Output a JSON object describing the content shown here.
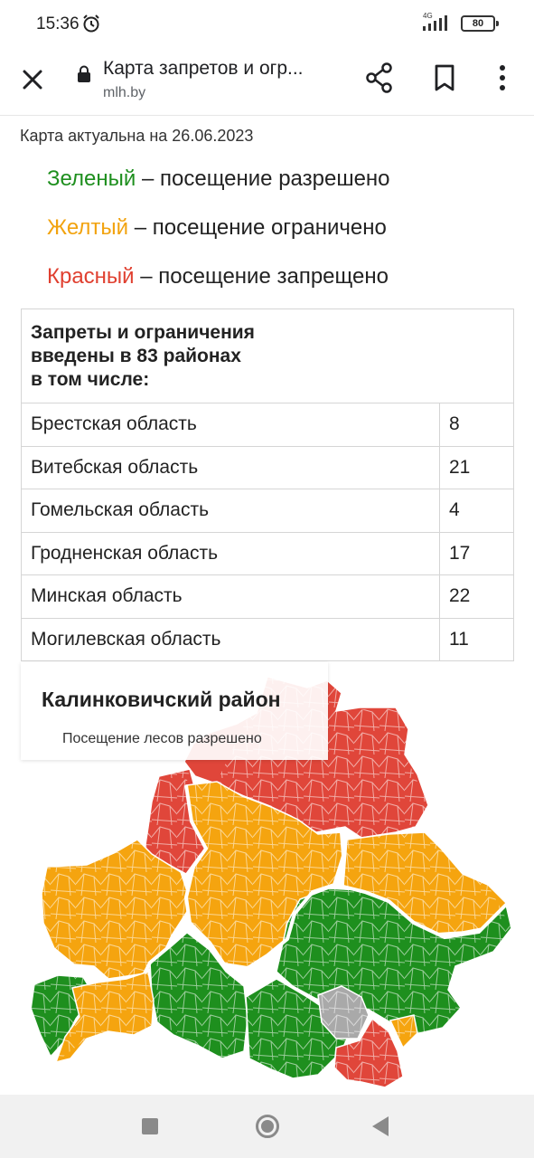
{
  "status": {
    "time": "15:36",
    "network": "4G",
    "battery": "80"
  },
  "browser": {
    "title": "Карта запретов и огр...",
    "url": "mlh.by"
  },
  "page": {
    "date_line": "Карта актуальна на 26.06.2023",
    "legend": [
      {
        "color_word": "Зеленый",
        "text": " – посещение разрешено",
        "color": "#1e8f1e"
      },
      {
        "color_word": "Желтый",
        "text": " – посещение ограничено",
        "color": "#f2a30f"
      },
      {
        "color_word": "Красный",
        "text": " – посещение запрещено",
        "color": "#e04030"
      }
    ],
    "table": {
      "header_lines": [
        "Запреты и ограничения",
        "введены в 83 районах",
        "в том числе:"
      ],
      "rows": [
        {
          "region": "Брестская область",
          "count": "8"
        },
        {
          "region": "Витебская область",
          "count": "21"
        },
        {
          "region": "Гомельская область",
          "count": "4"
        },
        {
          "region": "Гродненская область",
          "count": "17"
        },
        {
          "region": "Минская область",
          "count": "22"
        },
        {
          "region": "Могилевская область",
          "count": "11"
        }
      ]
    },
    "map_tooltip": {
      "title": "Калинковичский район",
      "subtitle": "Посещение лесов разрешено"
    },
    "map_colors": {
      "green": "#1e8f1e",
      "yellow": "#f5a40f",
      "red": "#e0463a",
      "gray": "#a9a9a9"
    }
  }
}
